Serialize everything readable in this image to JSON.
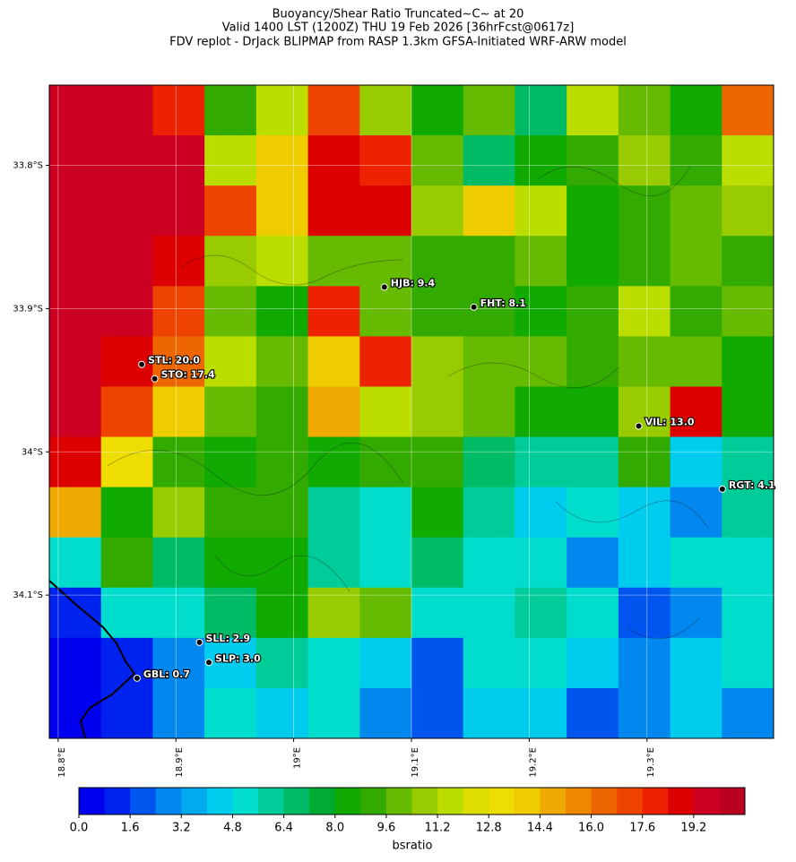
{
  "chart_data": {
    "type": "heatmap",
    "title": [
      "Buoyancy/Shear Ratio Truncated~C~    at 20",
      "Valid 1400 LST (1200Z) THU 19 Feb 2026 [36hrFcst@0617z]",
      "FDV replot - DrJack BLIPMAP from RASP 1.3km GFSA-Initiated WRF-ARW model"
    ],
    "xlim": [
      18.7925,
      19.4075
    ],
    "ylim": [
      -34.2,
      -33.744
    ],
    "xticks": [
      {
        "value": 18.8,
        "label": "18.8°E"
      },
      {
        "value": 18.9,
        "label": "18.9°E"
      },
      {
        "value": 19.0,
        "label": "19°E"
      },
      {
        "value": 19.1,
        "label": "19.1°E"
      },
      {
        "value": 19.2,
        "label": "19.2°E"
      },
      {
        "value": 19.3,
        "label": "19.3°E"
      }
    ],
    "yticks": [
      {
        "value": -33.8,
        "label": "33.8°S"
      },
      {
        "value": -33.9,
        "label": "33.9°S"
      },
      {
        "value": -34.0,
        "label": "34°S"
      },
      {
        "value": -34.1,
        "label": "34.1°S"
      }
    ],
    "grid": [
      [
        20,
        20,
        18,
        9,
        12,
        17,
        11,
        8,
        10,
        7,
        12,
        10,
        8,
        16
      ],
      [
        20,
        20,
        20,
        12,
        14,
        19,
        18,
        10,
        7,
        8,
        9,
        11,
        9,
        12
      ],
      [
        20,
        20,
        20,
        17,
        14,
        19,
        19,
        11,
        14,
        12,
        8,
        9,
        10,
        11
      ],
      [
        20,
        20,
        19,
        11,
        12,
        10,
        10,
        9,
        9,
        10,
        8,
        9,
        10,
        9
      ],
      [
        20,
        20,
        17,
        10,
        8,
        18,
        10,
        9,
        9,
        8,
        9,
        12,
        9,
        10
      ],
      [
        20,
        19,
        16,
        12,
        10,
        14,
        18,
        11,
        10,
        10,
        9,
        10,
        10,
        8
      ],
      [
        20,
        17,
        14,
        10,
        9,
        15,
        12,
        11,
        10,
        8,
        8,
        11,
        19,
        8
      ],
      [
        19,
        13,
        9,
        8,
        9,
        8,
        9,
        9,
        7,
        6,
        6,
        9,
        4,
        6
      ],
      [
        15,
        8,
        11,
        9,
        9,
        6,
        5,
        8,
        6,
        4,
        5,
        4,
        3,
        6
      ],
      [
        5,
        9,
        7,
        8,
        8,
        6,
        5,
        7,
        5,
        5,
        3,
        4,
        5,
        5
      ],
      [
        1,
        5,
        5,
        7,
        8,
        11,
        10,
        5,
        5,
        6,
        5,
        2,
        3,
        5
      ],
      [
        0,
        1,
        3,
        4,
        6,
        5,
        4,
        2,
        5,
        5,
        4,
        3,
        4,
        5
      ],
      [
        0,
        1,
        3,
        5,
        4,
        5,
        3,
        2,
        4,
        4,
        2,
        3,
        4,
        3
      ]
    ],
    "colors": [
      "#0000ee",
      "#0022ee",
      "#0055ee",
      "#0088ee",
      "#00aaee",
      "#00ccee",
      "#00ddcc",
      "#00cc99",
      "#00bb66",
      "#00aa33",
      "#11aa00",
      "#33aa00",
      "#66bb00",
      "#99cc00",
      "#bbdd00",
      "#dddd00",
      "#eedd00",
      "#eecc00",
      "#eeaa00",
      "#ee8800",
      "#ee6600",
      "#ee4400",
      "#ee2200",
      "#dd0000",
      "#cc0022",
      "#bb0022"
    ],
    "clim": [
      0,
      20.8
    ],
    "cticks": [
      {
        "value": 0,
        "label": "0.0"
      },
      1.6,
      3.2,
      4.8,
      6.4,
      {
        "value": 8,
        "label": "8.0"
      },
      9.6,
      11.2,
      12.8,
      14.4,
      {
        "value": 16,
        "label": "16.0"
      },
      17.6,
      19.2
    ],
    "colorbar_label": "bsratio",
    "stations": [
      {
        "label": "STL: 20.0",
        "lon": 18.871,
        "lat": -33.939
      },
      {
        "label": "STO: 17.4",
        "lon": 18.882,
        "lat": -33.949
      },
      {
        "label": "HJB: 9.4",
        "lon": 19.077,
        "lat": -33.885
      },
      {
        "label": "FHT: 8.1",
        "lon": 19.153,
        "lat": -33.899
      },
      {
        "label": "VIL: 13.0",
        "lon": 19.293,
        "lat": -33.982
      },
      {
        "label": "RGT: 4.1",
        "lon": 19.364,
        "lat": -34.026
      },
      {
        "label": "SLL: 2.9",
        "lon": 18.92,
        "lat": -34.133
      },
      {
        "label": "SLP: 3.0",
        "lon": 18.928,
        "lat": -34.147
      },
      {
        "label": "GBL: 0.7",
        "lon": 18.867,
        "lat": -34.158
      }
    ]
  }
}
